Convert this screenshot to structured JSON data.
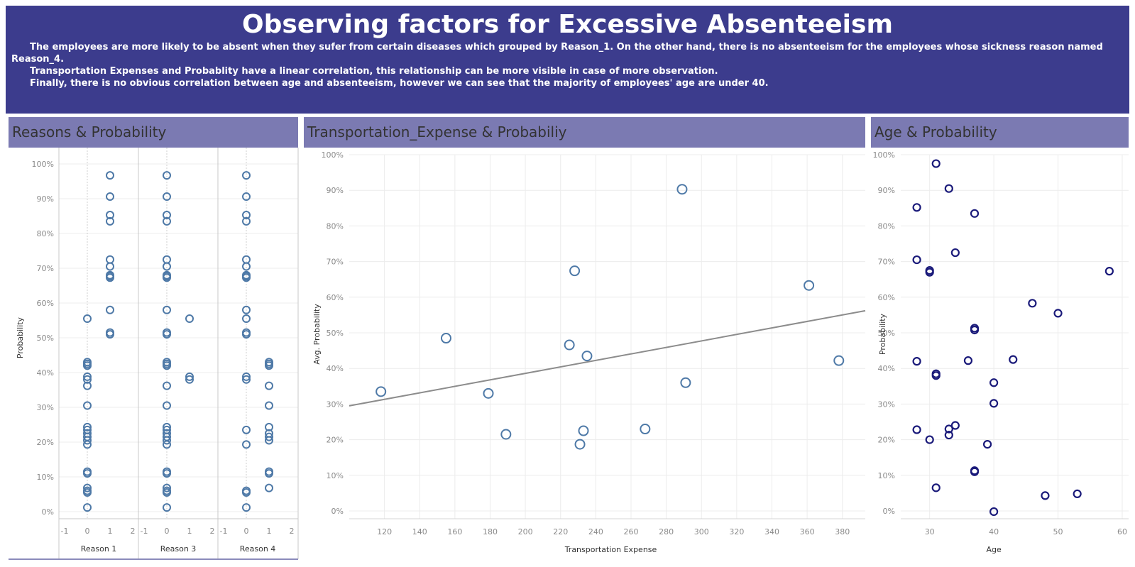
{
  "header": {
    "title": "Observing factors for Excessive Absenteeism",
    "paragraph1": "The employees are more likely to be absent when they sufer from certain diseases which grouped by Reason_1. On the other hand, there is no absenteeism for the employees whose sickness reason named Reason_4.",
    "paragraph2": "Transportation Expenses and Probablity have a linear correlation, this relationship can be more visible in case of more observation.",
    "paragraph3": "Finally,  there is no obvious correlation between age and absenteeism, however we can see that the majority of employees' age are under 40."
  },
  "colors": {
    "header_bg": "#3c3c8d",
    "panel_head_bg": "#7b7ab2",
    "point_blue": "#4e79a7",
    "point_navy": "#1a1a7a",
    "trend": "#8c8c8c"
  },
  "chart_data": [
    {
      "title": "Reasons & Probability",
      "type": "scatter",
      "ylabel": "Probability",
      "ylim": [
        0,
        1
      ],
      "yticks": [
        "0%",
        "10%",
        "20%",
        "30%",
        "40%",
        "50%",
        "60%",
        "70%",
        "80%",
        "90%",
        "100%"
      ],
      "xlim": [
        -1,
        2
      ],
      "xticks": [
        "-1",
        "0",
        "1",
        "2"
      ],
      "facets": [
        {
          "label": "Reason 1",
          "x0": [
            0.012,
            0.055,
            0.06,
            0.068,
            0.11,
            0.115,
            0.193,
            0.205,
            0.215,
            0.225,
            0.235,
            0.243,
            0.305,
            0.362,
            0.38,
            0.388,
            0.42,
            0.425,
            0.43,
            0.555
          ],
          "x1": [
            0.51,
            0.515,
            0.58,
            0.673,
            0.677,
            0.68,
            0.705,
            0.725,
            0.835,
            0.853,
            0.906,
            0.967
          ]
        },
        {
          "label": "Reason 3",
          "x0": [
            0.012,
            0.055,
            0.06,
            0.068,
            0.11,
            0.115,
            0.193,
            0.205,
            0.215,
            0.225,
            0.235,
            0.243,
            0.305,
            0.362,
            0.42,
            0.425,
            0.43,
            0.51,
            0.515,
            0.58,
            0.673,
            0.677,
            0.68,
            0.705,
            0.725,
            0.835,
            0.853,
            0.906,
            0.967
          ],
          "x1": [
            0.38,
            0.388,
            0.555
          ]
        },
        {
          "label": "Reason 4",
          "x0": [
            0.012,
            0.055,
            0.06,
            0.193,
            0.235,
            0.38,
            0.388,
            0.51,
            0.515,
            0.555,
            0.58,
            0.673,
            0.677,
            0.68,
            0.705,
            0.725,
            0.835,
            0.853,
            0.906,
            0.967
          ],
          "x1": [
            0.068,
            0.11,
            0.115,
            0.205,
            0.215,
            0.225,
            0.243,
            0.305,
            0.362,
            0.42,
            0.425,
            0.43
          ]
        }
      ]
    },
    {
      "title": "Transportation_Expense & Probabiliy",
      "type": "scatter",
      "xlabel": "Transportation Expense",
      "ylabel": "Avg. Probability",
      "xlim": [
        100,
        393
      ],
      "ylim": [
        -0.01,
        1.0
      ],
      "xticks": [
        120,
        140,
        160,
        180,
        200,
        220,
        240,
        260,
        280,
        300,
        320,
        340,
        360,
        380
      ],
      "yticks": [
        "0%",
        "10%",
        "20%",
        "30%",
        "40%",
        "50%",
        "60%",
        "70%",
        "80%",
        "90%",
        "100%"
      ],
      "x": [
        118,
        155,
        179,
        189,
        225,
        228,
        231,
        233,
        235,
        268,
        289,
        291,
        361,
        378
      ],
      "y": [
        0.335,
        0.485,
        0.33,
        0.215,
        0.466,
        0.674,
        0.187,
        0.225,
        0.435,
        0.23,
        0.903,
        0.36,
        0.633,
        0.422
      ],
      "trendline": {
        "x": [
          100,
          393
        ],
        "y": [
          0.295,
          0.562
        ]
      }
    },
    {
      "title": "Age & Probability",
      "type": "scatter",
      "xlabel": "Age",
      "ylabel": "Probability",
      "xlim": [
        25.5,
        61
      ],
      "ylim": [
        -0.01,
        1.0
      ],
      "xticks": [
        30,
        40,
        50,
        60
      ],
      "yticks": [
        "0%",
        "10%",
        "20%",
        "30%",
        "40%",
        "50%",
        "60%",
        "70%",
        "80%",
        "90%",
        "100%"
      ],
      "x": [
        28,
        28,
        28,
        28,
        30,
        30,
        30,
        31,
        31,
        31,
        31,
        33,
        33,
        33,
        34,
        34,
        36,
        37,
        37,
        37,
        37,
        37,
        39,
        40,
        40,
        40,
        43,
        46,
        48,
        50,
        53,
        58
      ],
      "y": [
        0.852,
        0.705,
        0.42,
        0.228,
        0.675,
        0.67,
        0.2,
        0.975,
        0.385,
        0.38,
        0.065,
        0.905,
        0.23,
        0.213,
        0.725,
        0.24,
        0.422,
        0.835,
        0.513,
        0.508,
        0.113,
        0.11,
        0.187,
        0.36,
        0.302,
        -0.002,
        0.425,
        0.583,
        0.043,
        0.555,
        0.048,
        0.673
      ]
    }
  ]
}
